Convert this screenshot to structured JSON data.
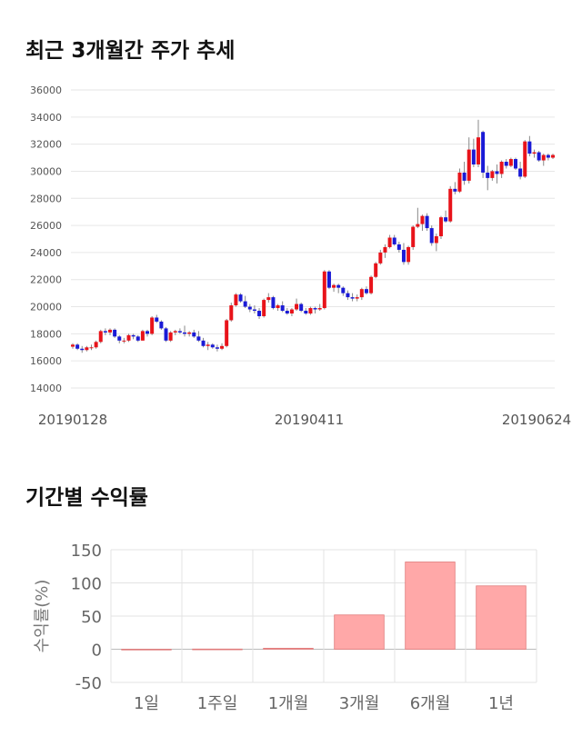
{
  "section1": {
    "title": "최근 3개월간 주가 추세"
  },
  "section2": {
    "title": "기간별 수익률"
  },
  "chart_data": [
    {
      "type": "candlestick",
      "title": "최근 3개월간 주가 추세",
      "ylim": [
        14000,
        36000
      ],
      "yticks": [
        "36000",
        "34000",
        "32000",
        "30000",
        "28000",
        "26000",
        "24000",
        "22000",
        "20000",
        "18000",
        "16000",
        "14000"
      ],
      "date_labels": [
        "20190128",
        "20190411",
        "20190624"
      ],
      "grid": true,
      "colors": {
        "up": "#e8131a",
        "down": "#1a1ad6",
        "wick": "#888888"
      },
      "ohlc": [
        [
          17050,
          17300,
          16900,
          17200
        ],
        [
          17200,
          17300,
          16800,
          16900
        ],
        [
          16900,
          17100,
          16600,
          16800
        ],
        [
          16800,
          17100,
          16700,
          17000
        ],
        [
          17000,
          17200,
          16800,
          17000
        ],
        [
          17000,
          17500,
          16900,
          17400
        ],
        [
          17400,
          18300,
          17300,
          18200
        ],
        [
          18200,
          18400,
          17900,
          18100
        ],
        [
          18100,
          18400,
          17900,
          18300
        ],
        [
          18300,
          18400,
          17700,
          17800
        ],
        [
          17800,
          17900,
          17300,
          17500
        ],
        [
          17500,
          17700,
          17300,
          17500
        ],
        [
          17500,
          18000,
          17400,
          17900
        ],
        [
          17900,
          18000,
          17600,
          17800
        ],
        [
          17800,
          17900,
          17400,
          17500
        ],
        [
          17500,
          18300,
          17500,
          18200
        ],
        [
          18200,
          18300,
          17800,
          18000
        ],
        [
          18000,
          19300,
          17900,
          19200
        ],
        [
          19200,
          19400,
          18800,
          18900
        ],
        [
          18900,
          19000,
          18300,
          18400
        ],
        [
          18400,
          18500,
          17400,
          17500
        ],
        [
          17500,
          18200,
          17400,
          18100
        ],
        [
          18100,
          18300,
          17900,
          18200
        ],
        [
          18200,
          18400,
          18000,
          18100
        ],
        [
          18100,
          18600,
          17800,
          18000
        ],
        [
          18000,
          18200,
          17800,
          18100
        ],
        [
          18100,
          18300,
          17700,
          17800
        ],
        [
          17800,
          18200,
          17400,
          17500
        ],
        [
          17500,
          17700,
          17000,
          17100
        ],
        [
          17100,
          17400,
          16800,
          17200
        ],
        [
          17200,
          17300,
          16900,
          17000
        ],
        [
          17000,
          17200,
          16700,
          16900
        ],
        [
          16900,
          17300,
          16800,
          17100
        ],
        [
          17100,
          19100,
          17000,
          19000
        ],
        [
          19000,
          20300,
          18900,
          20100
        ],
        [
          20100,
          21000,
          20000,
          20900
        ],
        [
          20900,
          21000,
          20300,
          20400
        ],
        [
          20400,
          20800,
          19900,
          20000
        ],
        [
          20000,
          20200,
          19600,
          19800
        ],
        [
          19800,
          20100,
          19500,
          19700
        ],
        [
          19700,
          19900,
          19100,
          19300
        ],
        [
          19300,
          20600,
          19200,
          20500
        ],
        [
          20500,
          21000,
          20300,
          20700
        ],
        [
          20700,
          20800,
          19800,
          19900
        ],
        [
          19900,
          20200,
          19700,
          20100
        ],
        [
          20100,
          20400,
          19600,
          19700
        ],
        [
          19700,
          19900,
          19400,
          19500
        ],
        [
          19500,
          19900,
          19300,
          19800
        ],
        [
          19800,
          20600,
          19700,
          20200
        ],
        [
          20200,
          20300,
          19600,
          19700
        ],
        [
          19700,
          19900,
          19400,
          19500
        ],
        [
          19500,
          20000,
          19400,
          19900
        ],
        [
          19900,
          20000,
          19500,
          19800
        ],
        [
          19800,
          20200,
          19700,
          19900
        ],
        [
          19900,
          22700,
          19800,
          22600
        ],
        [
          22600,
          22700,
          21300,
          21400
        ],
        [
          21400,
          21700,
          21100,
          21600
        ],
        [
          21600,
          21700,
          21000,
          21400
        ],
        [
          21400,
          21500,
          20800,
          21000
        ],
        [
          21000,
          21200,
          20500,
          20700
        ],
        [
          20700,
          21000,
          20400,
          20600
        ],
        [
          20600,
          20900,
          20400,
          20700
        ],
        [
          20700,
          21400,
          20500,
          21300
        ],
        [
          21300,
          21500,
          20900,
          21000
        ],
        [
          21000,
          22300,
          20900,
          22200
        ],
        [
          22200,
          23300,
          22100,
          23200
        ],
        [
          23200,
          24200,
          23100,
          24000
        ],
        [
          24000,
          24600,
          23600,
          24400
        ],
        [
          24400,
          25300,
          24300,
          25100
        ],
        [
          25100,
          25300,
          24500,
          24600
        ],
        [
          24600,
          24800,
          24000,
          24200
        ],
        [
          24200,
          24700,
          23100,
          23300
        ],
        [
          23300,
          24500,
          23100,
          24400
        ],
        [
          24400,
          26000,
          24200,
          25900
        ],
        [
          25900,
          27300,
          25800,
          26100
        ],
        [
          26100,
          26800,
          25600,
          26700
        ],
        [
          26700,
          26900,
          25600,
          25800
        ],
        [
          25800,
          26000,
          24500,
          24700
        ],
        [
          24700,
          25400,
          24100,
          25200
        ],
        [
          25200,
          26700,
          25000,
          26600
        ],
        [
          26600,
          27100,
          26200,
          26300
        ],
        [
          26300,
          28900,
          26200,
          28700
        ],
        [
          28700,
          29200,
          28300,
          28500
        ],
        [
          28500,
          30200,
          28400,
          29900
        ],
        [
          29900,
          30700,
          29000,
          29300
        ],
        [
          29300,
          32500,
          29100,
          31600
        ],
        [
          31600,
          32400,
          30300,
          30500
        ],
        [
          30500,
          33800,
          30300,
          32500
        ],
        [
          32900,
          33000,
          29500,
          29900
        ],
        [
          29900,
          30400,
          28600,
          29500
        ],
        [
          29500,
          30100,
          29300,
          30000
        ],
        [
          30000,
          30500,
          29100,
          29800
        ],
        [
          29800,
          30800,
          29500,
          30700
        ],
        [
          30700,
          30900,
          30200,
          30400
        ],
        [
          30400,
          31000,
          30300,
          30900
        ],
        [
          30900,
          31000,
          30100,
          30200
        ],
        [
          30200,
          30700,
          29400,
          29600
        ],
        [
          29600,
          32300,
          29500,
          32200
        ],
        [
          32200,
          32600,
          31100,
          31300
        ],
        [
          31300,
          31600,
          31000,
          31400
        ],
        [
          31400,
          31500,
          30700,
          30800
        ],
        [
          30800,
          31300,
          30400,
          31200
        ],
        [
          31200,
          31300,
          30800,
          31000
        ],
        [
          31000,
          31300,
          30900,
          31200
        ]
      ]
    },
    {
      "type": "bar",
      "title": "기간별 수익률",
      "ylabel": "수익률(%)",
      "categories": [
        "1일",
        "1주일",
        "1개월",
        "3개월",
        "6개월",
        "1년"
      ],
      "values": [
        0.0,
        0.3,
        1.5,
        51.7,
        131.5,
        95.5
      ],
      "ylim": [
        -50,
        150
      ],
      "yticks": [
        "150",
        "100",
        "50",
        "0",
        "-50"
      ],
      "bar_color": "#ffa8a8",
      "bar_edge": "#e07a7a"
    }
  ]
}
